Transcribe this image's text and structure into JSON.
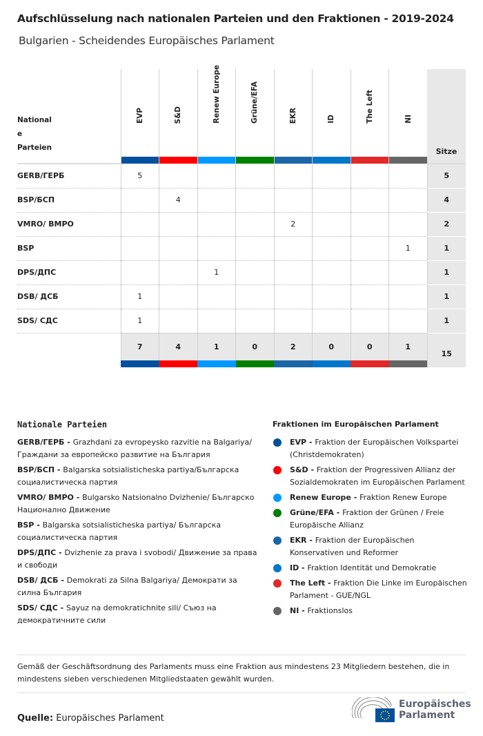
{
  "title": "Aufschlüsselung nach nationalen Parteien und den Fraktionen - 2019-2024",
  "subtitle": "Bulgarien - Scheidendes Europäisches Parlament",
  "table": {
    "label_header": [
      "National",
      "e",
      "Parteien"
    ],
    "seats_header": "Sitze",
    "groups": [
      {
        "name": "EVP",
        "color": "#00509e"
      },
      {
        "name": "S&D",
        "color": "#ff0000"
      },
      {
        "name": "Renew Europe",
        "color": "#0099ff"
      },
      {
        "name": "Grüne/EFA",
        "color": "#008000"
      },
      {
        "name": "EKR",
        "color": "#1b66a6"
      },
      {
        "name": "ID",
        "color": "#0077c8"
      },
      {
        "name": "The Left",
        "color": "#e22828"
      },
      {
        "name": "NI",
        "color": "#666666"
      }
    ],
    "rows": [
      {
        "party": "GERB/ГЕРБ",
        "cells": [
          "5",
          "",
          "",
          "",
          "",
          "",
          "",
          ""
        ],
        "seats": "5"
      },
      {
        "party": "BSP/БСП",
        "cells": [
          "",
          "4",
          "",
          "",
          "",
          "",
          "",
          ""
        ],
        "seats": "4"
      },
      {
        "party": "VMRO/ BMPO",
        "cells": [
          "",
          "",
          "",
          "",
          "2",
          "",
          "",
          ""
        ],
        "seats": "2"
      },
      {
        "party": "BSP",
        "cells": [
          "",
          "",
          "",
          "",
          "",
          "",
          "",
          "1"
        ],
        "seats": "1"
      },
      {
        "party": "DPS/ДПС",
        "cells": [
          "",
          "",
          "1",
          "",
          "",
          "",
          "",
          ""
        ],
        "seats": "1"
      },
      {
        "party": "DSB/ ДСБ",
        "cells": [
          "1",
          "",
          "",
          "",
          "",
          "",
          "",
          ""
        ],
        "seats": "1"
      },
      {
        "party": "SDS/ СДС",
        "cells": [
          "1",
          "",
          "",
          "",
          "",
          "",
          "",
          ""
        ],
        "seats": "1"
      }
    ],
    "totals": [
      "7",
      "4",
      "1",
      "0",
      "2",
      "0",
      "0",
      "1"
    ],
    "total_seats": "15"
  },
  "legend_left": {
    "title": "Nationale Parteien",
    "items": [
      {
        "abbr": "GERB/ГЕРБ - ",
        "text": "Grazhdani za evropeysko razvitie na Balgariya/ Граждани за европейско развитие на България"
      },
      {
        "abbr": "BSP/БСП - ",
        "text": "Balgarska sotsialisticheska partiya/Българска социалистическа партия"
      },
      {
        "abbr": "VMRO/ BMPO - ",
        "text": "Bulgarsko Natsionalno Dvizhenie/ Българско Национално Движение"
      },
      {
        "abbr": "BSP - ",
        "text": "Balgarska sotsialisticheska partiya/ Българска социалистическа партия"
      },
      {
        "abbr": "DPS/ДПС - ",
        "text": "Dvizhenie za prava i svobodi/ Движение за права и свободи"
      },
      {
        "abbr": "DSB/ ДСБ - ",
        "text": "Demokrati za Silna Balgariya/ Демократи за силна България"
      },
      {
        "abbr": "SDS/ СДС - ",
        "text": "Sayuz na demokratichnite sili/ Съюз на демократичните сили"
      }
    ]
  },
  "legend_right": {
    "title": "Fraktionen im Europäischen Parlament",
    "items": [
      {
        "abbr": "EVP - ",
        "text": "Fraktion der Europäischen Volkspartei (Christdemokraten)",
        "color": "#00509e"
      },
      {
        "abbr": "S&D - ",
        "text": "Fraktion der Progressiven Allianz der Sozialdemokraten im Europäischen Parlament",
        "color": "#ff0000"
      },
      {
        "abbr": "Renew Europe - ",
        "text": "Fraktion Renew Europe",
        "color": "#0099ff"
      },
      {
        "abbr": "Grüne/EFA - ",
        "text": "Fraktion der Grünen / Freie Europäische Allianz",
        "color": "#008000"
      },
      {
        "abbr": "EKR - ",
        "text": "Fraktion der Europäischen Konservativen und Reformer",
        "color": "#1b66a6"
      },
      {
        "abbr": "ID - ",
        "text": "Fraktion Identität und Demokratie",
        "color": "#0077c8"
      },
      {
        "abbr": "The Left - ",
        "text": "Fraktion Die Linke im Europäischen Parlament - GUE/NGL",
        "color": "#e22828"
      },
      {
        "abbr": "NI - ",
        "text": "Fraktionslos",
        "color": "#666666"
      }
    ]
  },
  "note": "Gemäß der Geschäftsordnung des Parlaments muss eine Fraktion aus mindestens 23 Mitgliedern bestehen, die in mindestens sieben verschiedenen Mitgliedstaaten gewählt wurden.",
  "source": {
    "label": "Quelle:",
    "value": "Europäisches Parlament"
  },
  "logo": {
    "line1": "Europäisches",
    "line2": "Parlament"
  }
}
